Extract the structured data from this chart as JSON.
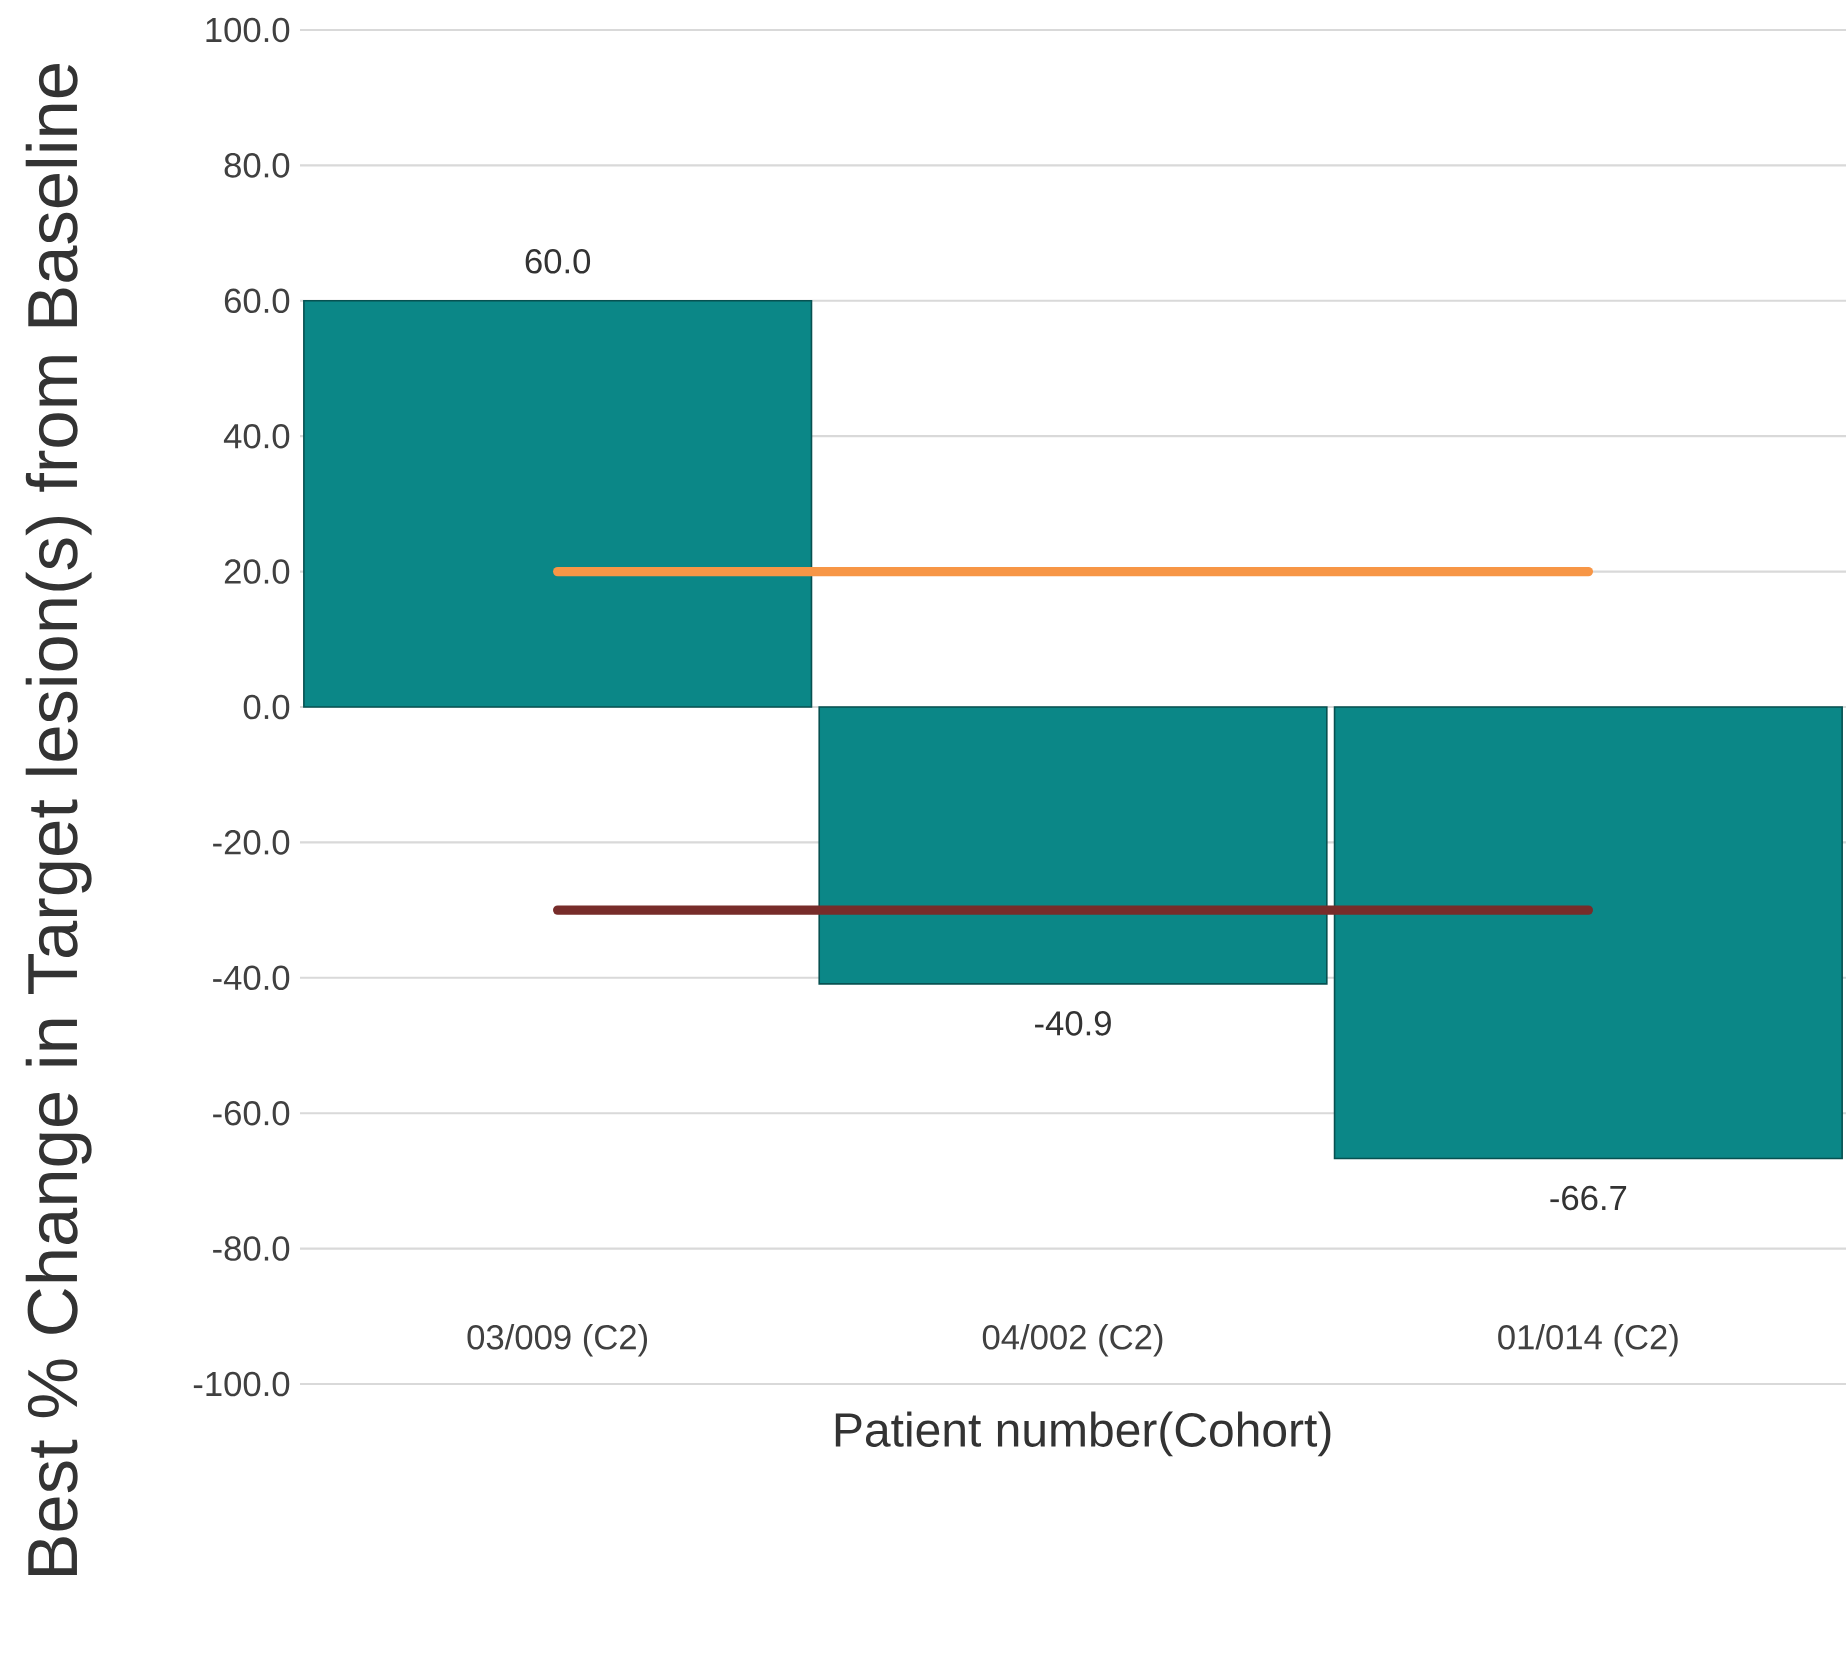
{
  "chart_data": {
    "type": "bar",
    "categories": [
      "03/009 (C2)",
      "04/002 (C2)",
      "01/014 (C2)"
    ],
    "values": [
      60.0,
      -40.9,
      -66.7
    ],
    "value_labels": [
      "60.0",
      "-40.9",
      "-66.7"
    ],
    "color": "#0b8787",
    "xlabel": "Patient number(Cohort)",
    "ylabel": "Best % Change in Target lesion(s) from Baseline",
    "ylim": [
      -100,
      100
    ],
    "yticks": [
      {
        "value": -100,
        "label": "-100.0"
      },
      {
        "value": -80,
        "label": "-80.0"
      },
      {
        "value": -60,
        "label": "-60.0"
      },
      {
        "value": -40,
        "label": "-40.0"
      },
      {
        "value": -20,
        "label": "-20.0"
      },
      {
        "value": 0,
        "label": "0.0"
      },
      {
        "value": 20,
        "label": "20.0"
      },
      {
        "value": 40,
        "label": "40.0"
      },
      {
        "value": 60,
        "label": "60.0"
      },
      {
        "value": 80,
        "label": "80.0"
      },
      {
        "value": 100,
        "label": "100.0"
      }
    ],
    "grid": "y",
    "ref_lines": [
      {
        "axis": "y",
        "value": 20,
        "color": "#f79646"
      },
      {
        "axis": "y",
        "value": -30,
        "color": "#772c2a"
      }
    ]
  }
}
